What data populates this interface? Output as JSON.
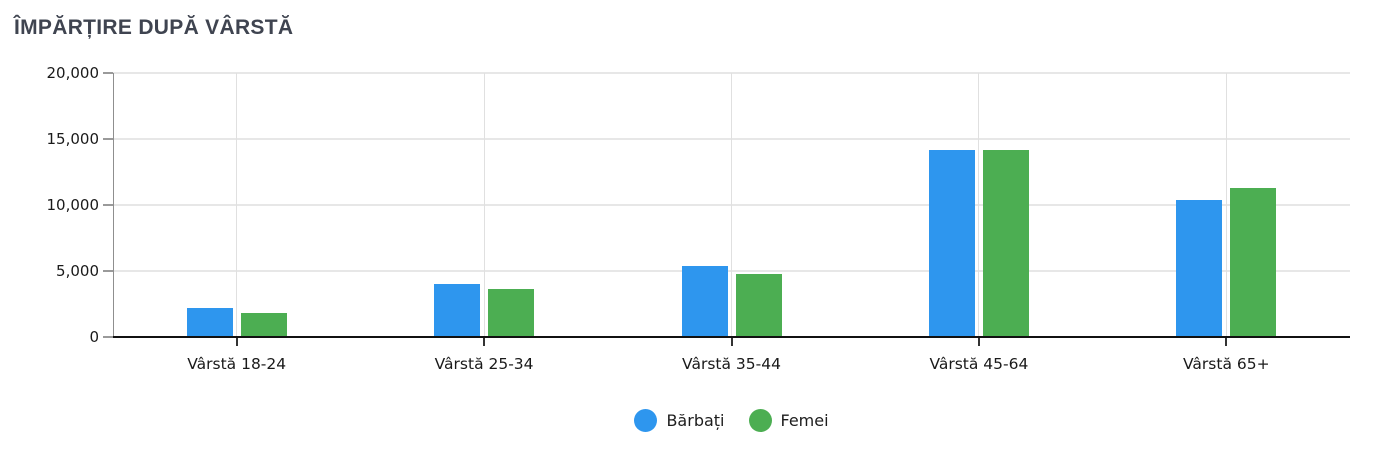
{
  "title": "ÎMPĂRȚIRE DUPĂ VÂRSTĂ",
  "chart_data": {
    "type": "bar",
    "title": "ÎMPĂRȚIRE DUPĂ VÂRSTĂ",
    "categories": [
      "Vârstă 18-24",
      "Vârstă 25-34",
      "Vârstă 35-44",
      "Vârstă 45-64",
      "Vârstă 65+"
    ],
    "series": [
      {
        "name": "Bărbați",
        "color": "#2E96EE",
        "values": [
          2200,
          4000,
          5400,
          14200,
          10400
        ]
      },
      {
        "name": "Femei",
        "color": "#4CAE52",
        "values": [
          1800,
          3600,
          4800,
          14200,
          11300
        ]
      }
    ],
    "xlabel": "",
    "ylabel": "",
    "ylim": [
      0,
      20000
    ],
    "yticks": [
      0,
      5000,
      10000,
      15000,
      20000
    ],
    "ytick_labels": [
      "0",
      "5,000",
      "10,000",
      "15,000",
      "20,000"
    ],
    "grid": true,
    "legend_position": "bottom"
  }
}
